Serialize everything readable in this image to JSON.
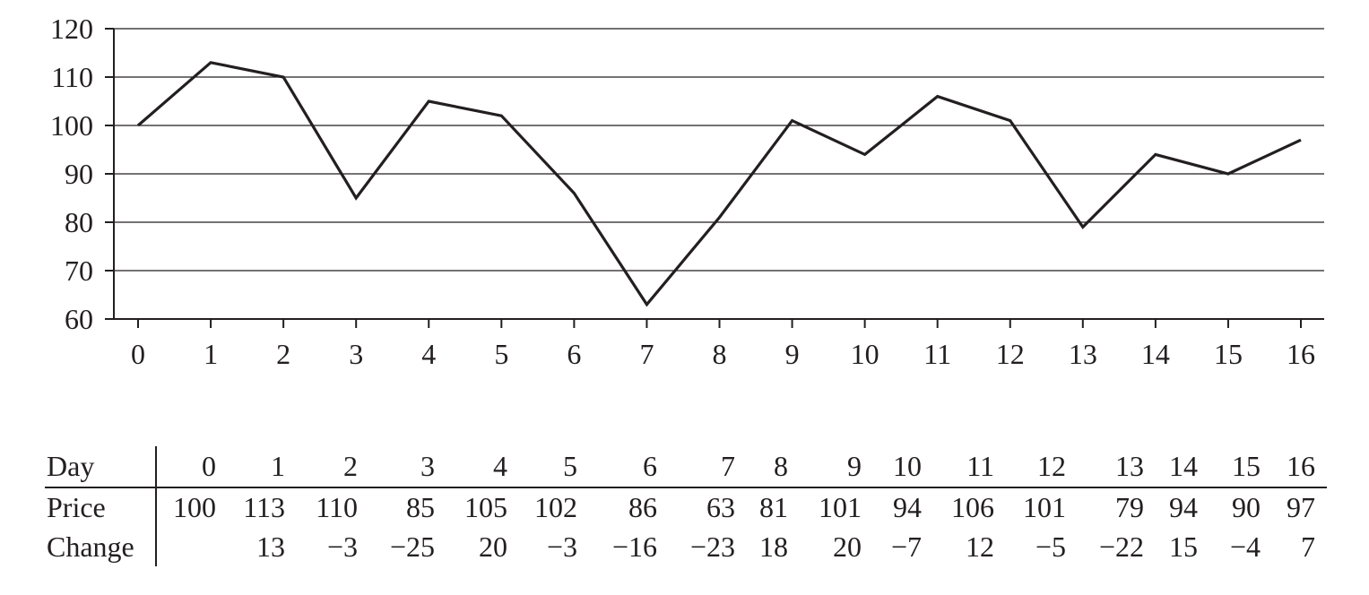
{
  "chart_data": {
    "type": "line",
    "x": [
      0,
      1,
      2,
      3,
      4,
      5,
      6,
      7,
      8,
      9,
      10,
      11,
      12,
      13,
      14,
      15,
      16
    ],
    "series": [
      {
        "values": [
          100,
          113,
          110,
          85,
          105,
          102,
          86,
          63,
          81,
          101,
          94,
          106,
          101,
          79,
          94,
          90,
          97
        ]
      }
    ],
    "x_ticks": [
      "0",
      "1",
      "2",
      "3",
      "4",
      "5",
      "6",
      "7",
      "8",
      "9",
      "10",
      "11",
      "12",
      "13",
      "14",
      "15",
      "16"
    ],
    "y_ticks": [
      "60",
      "70",
      "80",
      "90",
      "100",
      "110",
      "120"
    ],
    "xlim": [
      0,
      16
    ],
    "ylim": [
      60,
      120
    ],
    "grid": "horizontal",
    "line_color": "#231f20"
  },
  "table": {
    "row_labels": {
      "day": "Day",
      "price": "Price",
      "change": "Change"
    },
    "days": [
      "0",
      "1",
      "2",
      "3",
      "4",
      "5",
      "6",
      "7",
      "8",
      "9",
      "10",
      "11",
      "12",
      "13",
      "14",
      "15",
      "16"
    ],
    "prices": [
      "100",
      "113",
      "110",
      "85",
      "105",
      "102",
      "86",
      "63",
      "81",
      "101",
      "94",
      "106",
      "101",
      "79",
      "94",
      "90",
      "97"
    ],
    "changes": [
      "",
      "13",
      "−3",
      "−25",
      "20",
      "−3",
      "−16",
      "−23",
      "18",
      "20",
      "−7",
      "12",
      "−5",
      "−22",
      "15",
      "−4",
      "7"
    ]
  }
}
